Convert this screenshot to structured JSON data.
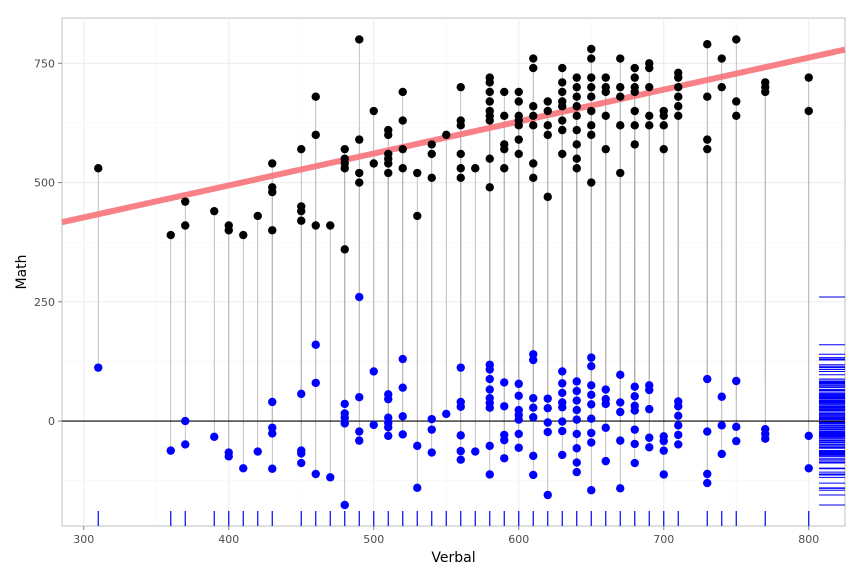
{
  "chart_data": {
    "type": "scatter",
    "xlabel": "Verbal",
    "ylabel": "Math",
    "xlim": [
      285,
      825
    ],
    "ylim": [
      -220,
      845
    ],
    "x_ticks": [
      300,
      400,
      500,
      600,
      700,
      800
    ],
    "y_ticks": [
      0,
      250,
      500,
      750
    ],
    "x_tick_labels": [
      "300",
      "400",
      "500",
      "600",
      "700",
      "800"
    ],
    "y_tick_labels": [
      "0",
      "250",
      "500",
      "750"
    ],
    "grid": true,
    "regression_line": {
      "intercept": 226,
      "slope": 0.67,
      "color": "#f8767d"
    },
    "zero_line": 0,
    "series": [
      {
        "label": "observed",
        "color": "#000000",
        "points": [
          [
            310,
            530
          ],
          [
            360,
            390
          ],
          [
            370,
            410
          ],
          [
            370,
            460
          ],
          [
            390,
            440
          ],
          [
            400,
            400
          ],
          [
            400,
            410
          ],
          [
            410,
            390
          ],
          [
            420,
            430
          ],
          [
            430,
            400
          ],
          [
            430,
            480
          ],
          [
            430,
            490
          ],
          [
            430,
            540
          ],
          [
            450,
            420
          ],
          [
            450,
            440
          ],
          [
            450,
            450
          ],
          [
            450,
            570
          ],
          [
            460,
            410
          ],
          [
            460,
            600
          ],
          [
            460,
            680
          ],
          [
            470,
            410
          ],
          [
            480,
            360
          ],
          [
            480,
            530
          ],
          [
            480,
            540
          ],
          [
            480,
            550
          ],
          [
            480,
            570
          ],
          [
            490,
            500
          ],
          [
            490,
            520
          ],
          [
            490,
            590
          ],
          [
            490,
            800
          ],
          [
            500,
            540
          ],
          [
            500,
            650
          ],
          [
            510,
            520
          ],
          [
            510,
            540
          ],
          [
            510,
            550
          ],
          [
            510,
            560
          ],
          [
            510,
            600
          ],
          [
            510,
            610
          ],
          [
            520,
            530
          ],
          [
            520,
            570
          ],
          [
            520,
            630
          ],
          [
            520,
            690
          ],
          [
            530,
            430
          ],
          [
            530,
            520
          ],
          [
            540,
            510
          ],
          [
            540,
            560
          ],
          [
            540,
            580
          ],
          [
            550,
            600
          ],
          [
            560,
            510
          ],
          [
            560,
            530
          ],
          [
            560,
            560
          ],
          [
            560,
            620
          ],
          [
            560,
            630
          ],
          [
            560,
            700
          ],
          [
            570,
            530
          ],
          [
            580,
            490
          ],
          [
            580,
            550
          ],
          [
            580,
            630
          ],
          [
            580,
            640
          ],
          [
            580,
            650
          ],
          [
            580,
            670
          ],
          [
            580,
            690
          ],
          [
            580,
            710
          ],
          [
            580,
            720
          ],
          [
            590,
            530
          ],
          [
            590,
            570
          ],
          [
            590,
            580
          ],
          [
            590,
            640
          ],
          [
            590,
            690
          ],
          [
            600,
            560
          ],
          [
            600,
            590
          ],
          [
            600,
            620
          ],
          [
            600,
            630
          ],
          [
            600,
            640
          ],
          [
            600,
            670
          ],
          [
            600,
            690
          ],
          [
            610,
            510
          ],
          [
            610,
            540
          ],
          [
            610,
            620
          ],
          [
            610,
            640
          ],
          [
            610,
            660
          ],
          [
            610,
            740
          ],
          [
            610,
            760
          ],
          [
            620,
            470
          ],
          [
            620,
            600
          ],
          [
            620,
            620
          ],
          [
            620,
            650
          ],
          [
            620,
            670
          ],
          [
            630,
            560
          ],
          [
            630,
            610
          ],
          [
            630,
            630
          ],
          [
            630,
            660
          ],
          [
            630,
            670
          ],
          [
            630,
            690
          ],
          [
            630,
            710
          ],
          [
            630,
            740
          ],
          [
            640,
            530
          ],
          [
            640,
            550
          ],
          [
            640,
            580
          ],
          [
            640,
            610
          ],
          [
            640,
            640
          ],
          [
            640,
            660
          ],
          [
            640,
            680
          ],
          [
            640,
            700
          ],
          [
            640,
            720
          ],
          [
            650,
            500
          ],
          [
            650,
            600
          ],
          [
            650,
            620
          ],
          [
            650,
            650
          ],
          [
            650,
            680
          ],
          [
            650,
            700
          ],
          [
            650,
            720
          ],
          [
            650,
            760
          ],
          [
            650,
            780
          ],
          [
            660,
            570
          ],
          [
            660,
            640
          ],
          [
            660,
            690
          ],
          [
            660,
            700
          ],
          [
            660,
            720
          ],
          [
            670,
            520
          ],
          [
            670,
            620
          ],
          [
            670,
            680
          ],
          [
            670,
            700
          ],
          [
            670,
            760
          ],
          [
            680,
            580
          ],
          [
            680,
            620
          ],
          [
            680,
            650
          ],
          [
            680,
            690
          ],
          [
            680,
            700
          ],
          [
            680,
            720
          ],
          [
            680,
            740
          ],
          [
            690,
            620
          ],
          [
            690,
            640
          ],
          [
            690,
            700
          ],
          [
            690,
            740
          ],
          [
            690,
            750
          ],
          [
            700,
            570
          ],
          [
            700,
            620
          ],
          [
            700,
            640
          ],
          [
            700,
            650
          ],
          [
            710,
            640
          ],
          [
            710,
            660
          ],
          [
            710,
            680
          ],
          [
            710,
            700
          ],
          [
            710,
            720
          ],
          [
            710,
            730
          ],
          [
            730,
            570
          ],
          [
            730,
            590
          ],
          [
            730,
            680
          ],
          [
            730,
            790
          ],
          [
            740,
            700
          ],
          [
            740,
            760
          ],
          [
            750,
            640
          ],
          [
            750,
            670
          ],
          [
            750,
            800
          ],
          [
            770,
            690
          ],
          [
            770,
            700
          ],
          [
            770,
            710
          ],
          [
            800,
            650
          ],
          [
            800,
            720
          ]
        ]
      },
      {
        "label": "residual",
        "color": "#0000ff",
        "points": [
          [
            310,
            112
          ],
          [
            360,
            -62
          ],
          [
            370,
            -49
          ],
          [
            370,
            0
          ],
          [
            390,
            -33
          ],
          [
            400,
            -74
          ],
          [
            400,
            -66
          ],
          [
            410,
            -99
          ],
          [
            420,
            -64
          ],
          [
            430,
            -100
          ],
          [
            430,
            -26
          ],
          [
            430,
            -14
          ],
          [
            430,
            40
          ],
          [
            450,
            -88
          ],
          [
            450,
            -68
          ],
          [
            450,
            -62
          ],
          [
            450,
            57
          ],
          [
            460,
            -111
          ],
          [
            460,
            80
          ],
          [
            460,
            160
          ],
          [
            470,
            -118
          ],
          [
            480,
            -176
          ],
          [
            480,
            -5
          ],
          [
            480,
            7
          ],
          [
            480,
            16
          ],
          [
            480,
            36
          ],
          [
            490,
            -41
          ],
          [
            490,
            -22
          ],
          [
            490,
            50
          ],
          [
            490,
            260
          ],
          [
            500,
            -8
          ],
          [
            500,
            104
          ],
          [
            510,
            -31
          ],
          [
            510,
            -13
          ],
          [
            510,
            -4
          ],
          [
            510,
            7
          ],
          [
            510,
            46
          ],
          [
            510,
            56
          ],
          [
            520,
            -28
          ],
          [
            520,
            10
          ],
          [
            520,
            70
          ],
          [
            520,
            130
          ],
          [
            530,
            -140
          ],
          [
            530,
            -52
          ],
          [
            540,
            -66
          ],
          [
            540,
            -18
          ],
          [
            540,
            4
          ],
          [
            550,
            15
          ],
          [
            560,
            -81
          ],
          [
            560,
            -63
          ],
          [
            560,
            -30
          ],
          [
            560,
            30
          ],
          [
            560,
            40
          ],
          [
            560,
            112
          ],
          [
            570,
            -64
          ],
          [
            580,
            -112
          ],
          [
            580,
            -52
          ],
          [
            580,
            28
          ],
          [
            580,
            38
          ],
          [
            580,
            48
          ],
          [
            580,
            66
          ],
          [
            580,
            88
          ],
          [
            580,
            108
          ],
          [
            580,
            118
          ],
          [
            590,
            -78
          ],
          [
            590,
            -40
          ],
          [
            590,
            -29
          ],
          [
            590,
            31
          ],
          [
            590,
            81
          ],
          [
            600,
            -56
          ],
          [
            600,
            -27
          ],
          [
            600,
            3
          ],
          [
            600,
            13
          ],
          [
            600,
            23
          ],
          [
            600,
            53
          ],
          [
            600,
            78
          ],
          [
            610,
            -113
          ],
          [
            610,
            -73
          ],
          [
            610,
            8
          ],
          [
            610,
            28
          ],
          [
            610,
            48
          ],
          [
            610,
            128
          ],
          [
            610,
            140
          ],
          [
            620,
            -155
          ],
          [
            620,
            -23
          ],
          [
            620,
            -3
          ],
          [
            620,
            27
          ],
          [
            620,
            47
          ],
          [
            630,
            -71
          ],
          [
            630,
            -21
          ],
          [
            630,
            -1
          ],
          [
            630,
            29
          ],
          [
            630,
            39
          ],
          [
            630,
            59
          ],
          [
            630,
            79
          ],
          [
            630,
            104
          ],
          [
            640,
            -107
          ],
          [
            640,
            -87
          ],
          [
            640,
            -57
          ],
          [
            640,
            -27
          ],
          [
            640,
            3
          ],
          [
            640,
            23
          ],
          [
            640,
            43
          ],
          [
            640,
            63
          ],
          [
            640,
            83
          ],
          [
            650,
            -145
          ],
          [
            650,
            -45
          ],
          [
            650,
            -25
          ],
          [
            650,
            5
          ],
          [
            650,
            35
          ],
          [
            650,
            55
          ],
          [
            650,
            75
          ],
          [
            650,
            115
          ],
          [
            650,
            133
          ],
          [
            660,
            -84
          ],
          [
            660,
            -14
          ],
          [
            660,
            36
          ],
          [
            660,
            46
          ],
          [
            660,
            66
          ],
          [
            670,
            -141
          ],
          [
            670,
            -41
          ],
          [
            670,
            19
          ],
          [
            670,
            39
          ],
          [
            670,
            97
          ],
          [
            680,
            -88
          ],
          [
            680,
            -48
          ],
          [
            680,
            -18
          ],
          [
            680,
            22
          ],
          [
            680,
            32
          ],
          [
            680,
            52
          ],
          [
            680,
            72
          ],
          [
            690,
            -55
          ],
          [
            690,
            -35
          ],
          [
            690,
            25
          ],
          [
            690,
            65
          ],
          [
            690,
            75
          ],
          [
            700,
            -112
          ],
          [
            700,
            -62
          ],
          [
            700,
            -42
          ],
          [
            700,
            -32
          ],
          [
            710,
            -49
          ],
          [
            710,
            -29
          ],
          [
            710,
            -9
          ],
          [
            710,
            11
          ],
          [
            710,
            31
          ],
          [
            710,
            41
          ],
          [
            730,
            -130
          ],
          [
            730,
            -111
          ],
          [
            730,
            -22
          ],
          [
            730,
            88
          ],
          [
            740,
            -69
          ],
          [
            740,
            -9
          ],
          [
            740,
            51
          ],
          [
            750,
            -42
          ],
          [
            750,
            -12
          ],
          [
            750,
            84
          ],
          [
            770,
            -37
          ],
          [
            770,
            -27
          ],
          [
            770,
            -17
          ],
          [
            800,
            -99
          ],
          [
            800,
            -31
          ]
        ]
      }
    ]
  }
}
